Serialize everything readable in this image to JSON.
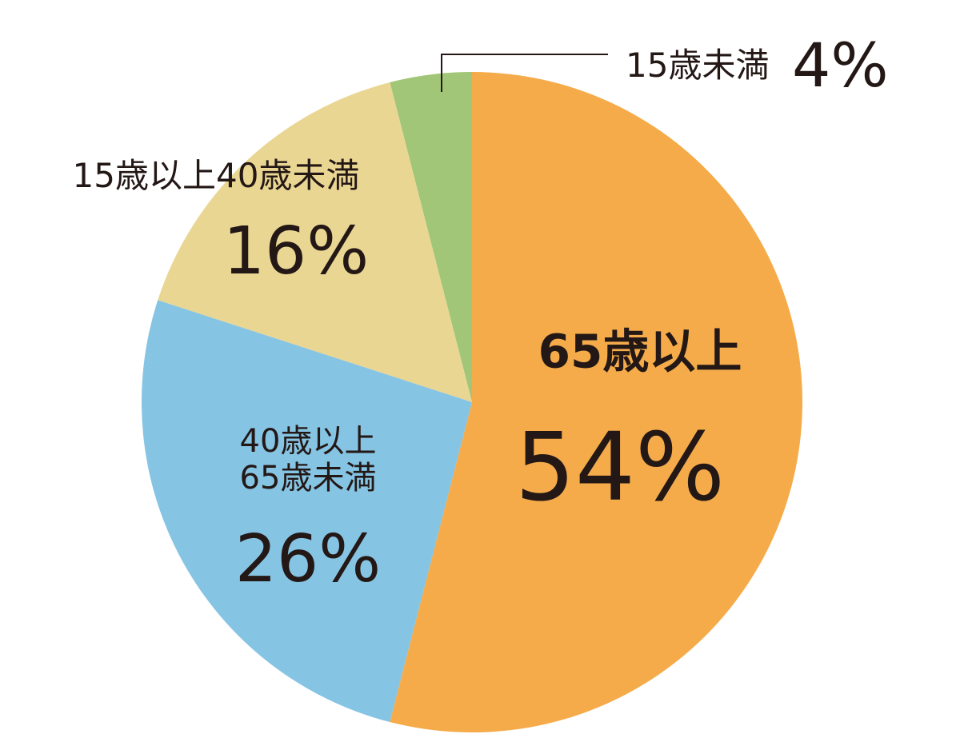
{
  "chart_data": {
    "type": "pie",
    "categories": [
      "65歳以上",
      "40歳以上65歳未満",
      "15歳以上40歳未満",
      "15歳未満"
    ],
    "values": [
      54,
      26,
      16,
      4
    ],
    "value_labels": [
      "54%",
      "26%",
      "16%",
      "4%"
    ],
    "colors": [
      "#f5ab4a",
      "#86c4e4",
      "#ead693",
      "#a2c677"
    ]
  }
}
